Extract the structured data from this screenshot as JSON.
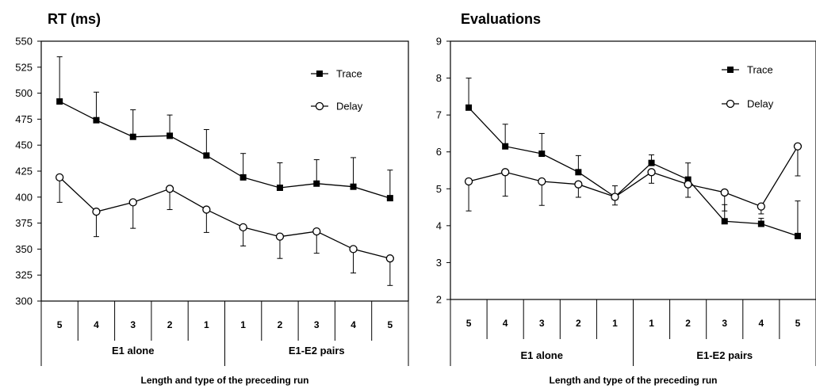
{
  "chart_data": [
    {
      "type": "line",
      "title": "RT (ms)",
      "xlabel": "Length and type of the preceding run",
      "categories": [
        "5",
        "4",
        "3",
        "2",
        "1",
        "1",
        "2",
        "3",
        "4",
        "5"
      ],
      "groups": [
        "E1 alone",
        "E1-E2 pairs"
      ],
      "ylim": [
        300,
        550
      ],
      "yticks": [
        "300",
        "325",
        "350",
        "375",
        "400",
        "425",
        "450",
        "475",
        "500",
        "525",
        "550"
      ],
      "grid": false,
      "legend_position": "top-right",
      "series": [
        {
          "name": "Trace",
          "marker": "filled-square",
          "values": [
            492,
            474,
            458,
            459,
            440,
            419,
            409,
            413,
            410,
            399
          ],
          "error": [
            43,
            27,
            26,
            20,
            25,
            23,
            24,
            23,
            28,
            27
          ]
        },
        {
          "name": "Delay",
          "marker": "open-circle",
          "values": [
            419,
            386,
            395,
            408,
            388,
            371,
            362,
            367,
            350,
            341
          ],
          "error": [
            24,
            24,
            25,
            20,
            22,
            18,
            21,
            21,
            23,
            26
          ]
        }
      ]
    },
    {
      "type": "line",
      "title": "Evaluations",
      "xlabel": "Length and type of the preceding run",
      "categories": [
        "5",
        "4",
        "3",
        "2",
        "1",
        "1",
        "2",
        "3",
        "4",
        "5"
      ],
      "groups": [
        "E1 alone",
        "E1-E2 pairs"
      ],
      "ylim": [
        2,
        9
      ],
      "yticks": [
        "2",
        "3",
        "4",
        "5",
        "6",
        "7",
        "8",
        "9"
      ],
      "grid": false,
      "legend_position": "top-right",
      "series": [
        {
          "name": "Trace",
          "marker": "filled-square",
          "values": [
            7.2,
            6.15,
            5.95,
            5.45,
            4.78,
            5.7,
            5.25,
            4.12,
            4.05,
            3.72
          ],
          "error": [
            0.8,
            0.6,
            0.55,
            0.45,
            0.3,
            0.22,
            0.45,
            0.45,
            0.15,
            0.95
          ]
        },
        {
          "name": "Delay",
          "marker": "open-circle",
          "values": [
            5.2,
            5.45,
            5.2,
            5.12,
            4.78,
            5.45,
            5.12,
            4.9,
            4.52,
            6.15
          ],
          "error": [
            0.8,
            0.65,
            0.65,
            0.35,
            0.22,
            0.3,
            0.35,
            0.5,
            0.2,
            0.8
          ]
        }
      ]
    }
  ]
}
